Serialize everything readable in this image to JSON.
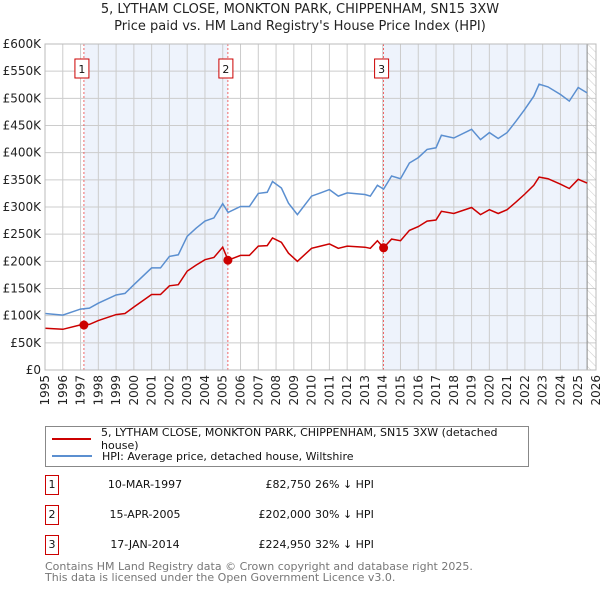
{
  "title": {
    "line1": "5, LYTHAM CLOSE, MONKTON PARK, CHIPPENHAM, SN15 3XW",
    "line2": "Price paid vs. HM Land Registry's House Price Index (HPI)"
  },
  "legend": {
    "red": "5, LYTHAM CLOSE, MONKTON PARK, CHIPPENHAM, SN15 3XW (detached house)",
    "blue": "HPI: Average price, detached house, Wiltshire"
  },
  "sales": [
    {
      "id": "1",
      "date": "10-MAR-1997",
      "price": "£82,750",
      "pct": "26% ↓ HPI"
    },
    {
      "id": "2",
      "date": "15-APR-2005",
      "price": "£202,000",
      "pct": "30% ↓ HPI"
    },
    {
      "id": "3",
      "date": "17-JAN-2014",
      "price": "£224,950",
      "pct": "32% ↓ HPI"
    }
  ],
  "footer": {
    "line1": "Contains HM Land Registry data © Crown copyright and database right 2025.",
    "line2": "This data is licensed under the Open Government Licence v3.0."
  },
  "colors": {
    "red": "#cc0000",
    "blue": "#5b8fd0",
    "shade": "#eef3fc"
  },
  "chart_data": {
    "type": "line",
    "xlim": [
      1995,
      2026
    ],
    "ylim": [
      0,
      600
    ],
    "ylabel": "",
    "xlabel": "",
    "y_ticks": [
      "£0",
      "£50K",
      "£100K",
      "£150K",
      "£200K",
      "£250K",
      "£300K",
      "£350K",
      "£400K",
      "£450K",
      "£500K",
      "£550K",
      "£600K"
    ],
    "x_ticks": [
      "1995",
      "1996",
      "1997",
      "1998",
      "1999",
      "2000",
      "2001",
      "2002",
      "2003",
      "2004",
      "2005",
      "2006",
      "2007",
      "2008",
      "2009",
      "2010",
      "2011",
      "2012",
      "2013",
      "2014",
      "2015",
      "2016",
      "2017",
      "2018",
      "2019",
      "2020",
      "2021",
      "2022",
      "2023",
      "2024",
      "2025",
      "2026"
    ],
    "x": [
      1995,
      1996,
      1997,
      1997.5,
      1998,
      1999,
      1999.5,
      2000,
      2001,
      2001.5,
      2002,
      2002.5,
      2003,
      2003.5,
      2004,
      2004.5,
      2005,
      2005.3,
      2006,
      2006.5,
      2007,
      2007.5,
      2007.8,
      2008.3,
      2008.7,
      2009.2,
      2010,
      2010.5,
      2011,
      2011.5,
      2012,
      2013,
      2013.3,
      2013.7,
      2014.05,
      2014.5,
      2015,
      2015.5,
      2016,
      2016.5,
      2017,
      2017.3,
      2018,
      2019,
      2019.5,
      2020,
      2020.5,
      2021,
      2021.5,
      2022,
      2022.5,
      2022.8,
      2023.3,
      2024,
      2024.5,
      2025,
      2025.5
    ],
    "series": [
      {
        "name": "5, LYTHAM CLOSE (detached house)",
        "color": "#cc0000",
        "values": [
          77,
          75,
          83,
          84,
          91,
          102,
          104,
          116,
          139,
          139,
          155,
          157,
          182,
          193,
          203,
          207,
          226,
          202,
          211,
          211,
          228,
          229,
          243,
          235,
          215,
          200,
          224,
          228,
          232,
          224,
          228,
          226,
          224,
          238,
          225,
          241,
          238,
          257,
          264,
          274,
          276,
          292,
          288,
          299,
          286,
          295,
          288,
          295,
          309,
          324,
          340,
          355,
          352,
          342,
          334,
          351,
          344
        ]
      },
      {
        "name": "HPI: Average price, detached house, Wiltshire",
        "color": "#5b8fd0",
        "values": [
          104,
          101,
          112,
          114,
          123,
          138,
          141,
          157,
          188,
          188,
          209,
          212,
          246,
          261,
          274,
          280,
          306,
          290,
          301,
          301,
          325,
          327,
          347,
          335,
          307,
          286,
          320,
          326,
          332,
          320,
          326,
          323,
          320,
          340,
          333,
          357,
          352,
          381,
          391,
          406,
          409,
          432,
          427,
          443,
          424,
          437,
          426,
          437,
          458,
          480,
          504,
          526,
          521,
          507,
          495,
          520,
          510
        ]
      }
    ],
    "sale_points": [
      {
        "label": "1",
        "x": 1997.19,
        "y": 82.75
      },
      {
        "label": "2",
        "x": 2005.29,
        "y": 202
      },
      {
        "label": "3",
        "x": 2014.05,
        "y": 224.95
      }
    ],
    "forecast_from": 2025.5,
    "grid": true
  }
}
